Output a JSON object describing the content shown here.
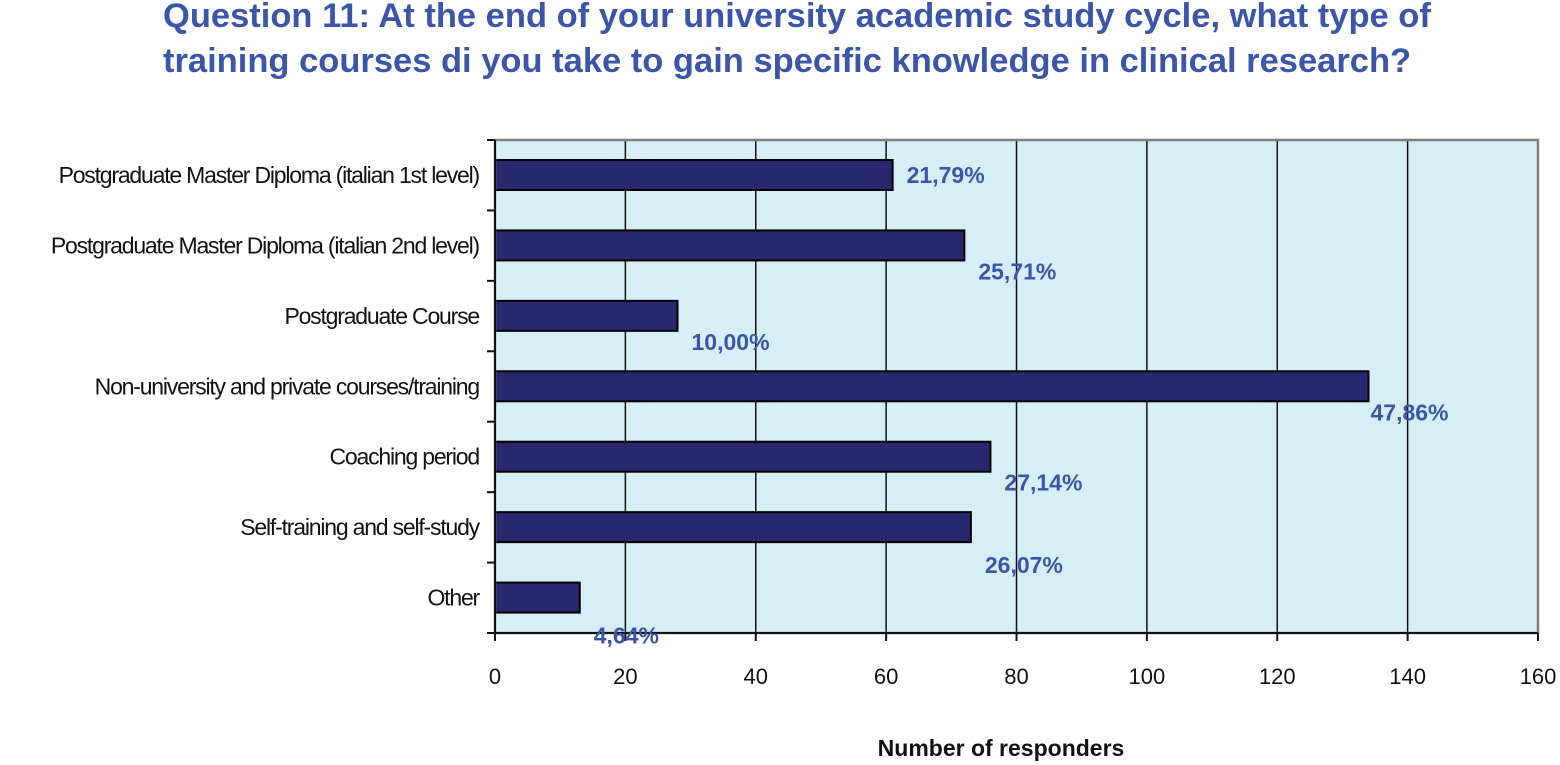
{
  "chart_data": {
    "type": "bar",
    "orientation": "horizontal",
    "title": "Question 11: At the end of your university academic study cycle, what type of training courses di you take to gain specific knowledge in clinical research?",
    "xlabel": "Number of responders",
    "ylabel": "",
    "xlim": [
      0,
      160
    ],
    "xticks": [
      0,
      20,
      40,
      60,
      80,
      100,
      120,
      140,
      160
    ],
    "grid": true,
    "legend": "none",
    "categories": [
      "Postgraduate Master Diploma (italian 1st level)",
      "Postgraduate Master Diploma (italian 2nd level)",
      "Postgraduate Course",
      "Non-university and private courses/training",
      "Coaching period",
      "Self-training and self-study",
      "Other"
    ],
    "values": [
      61,
      72,
      28,
      134,
      76,
      73,
      13
    ],
    "data_labels": [
      "21,79%",
      "25,71%",
      "10,00%",
      "47,86%",
      "27,14%",
      "26,07%",
      "4,64%"
    ],
    "colors": {
      "bar_fill": "#29286e",
      "bar_stroke": "#000000",
      "plot_background": "#d6eef5",
      "gridline": "#111111",
      "frame": "#808080",
      "label_color": "#3b55a9"
    }
  }
}
